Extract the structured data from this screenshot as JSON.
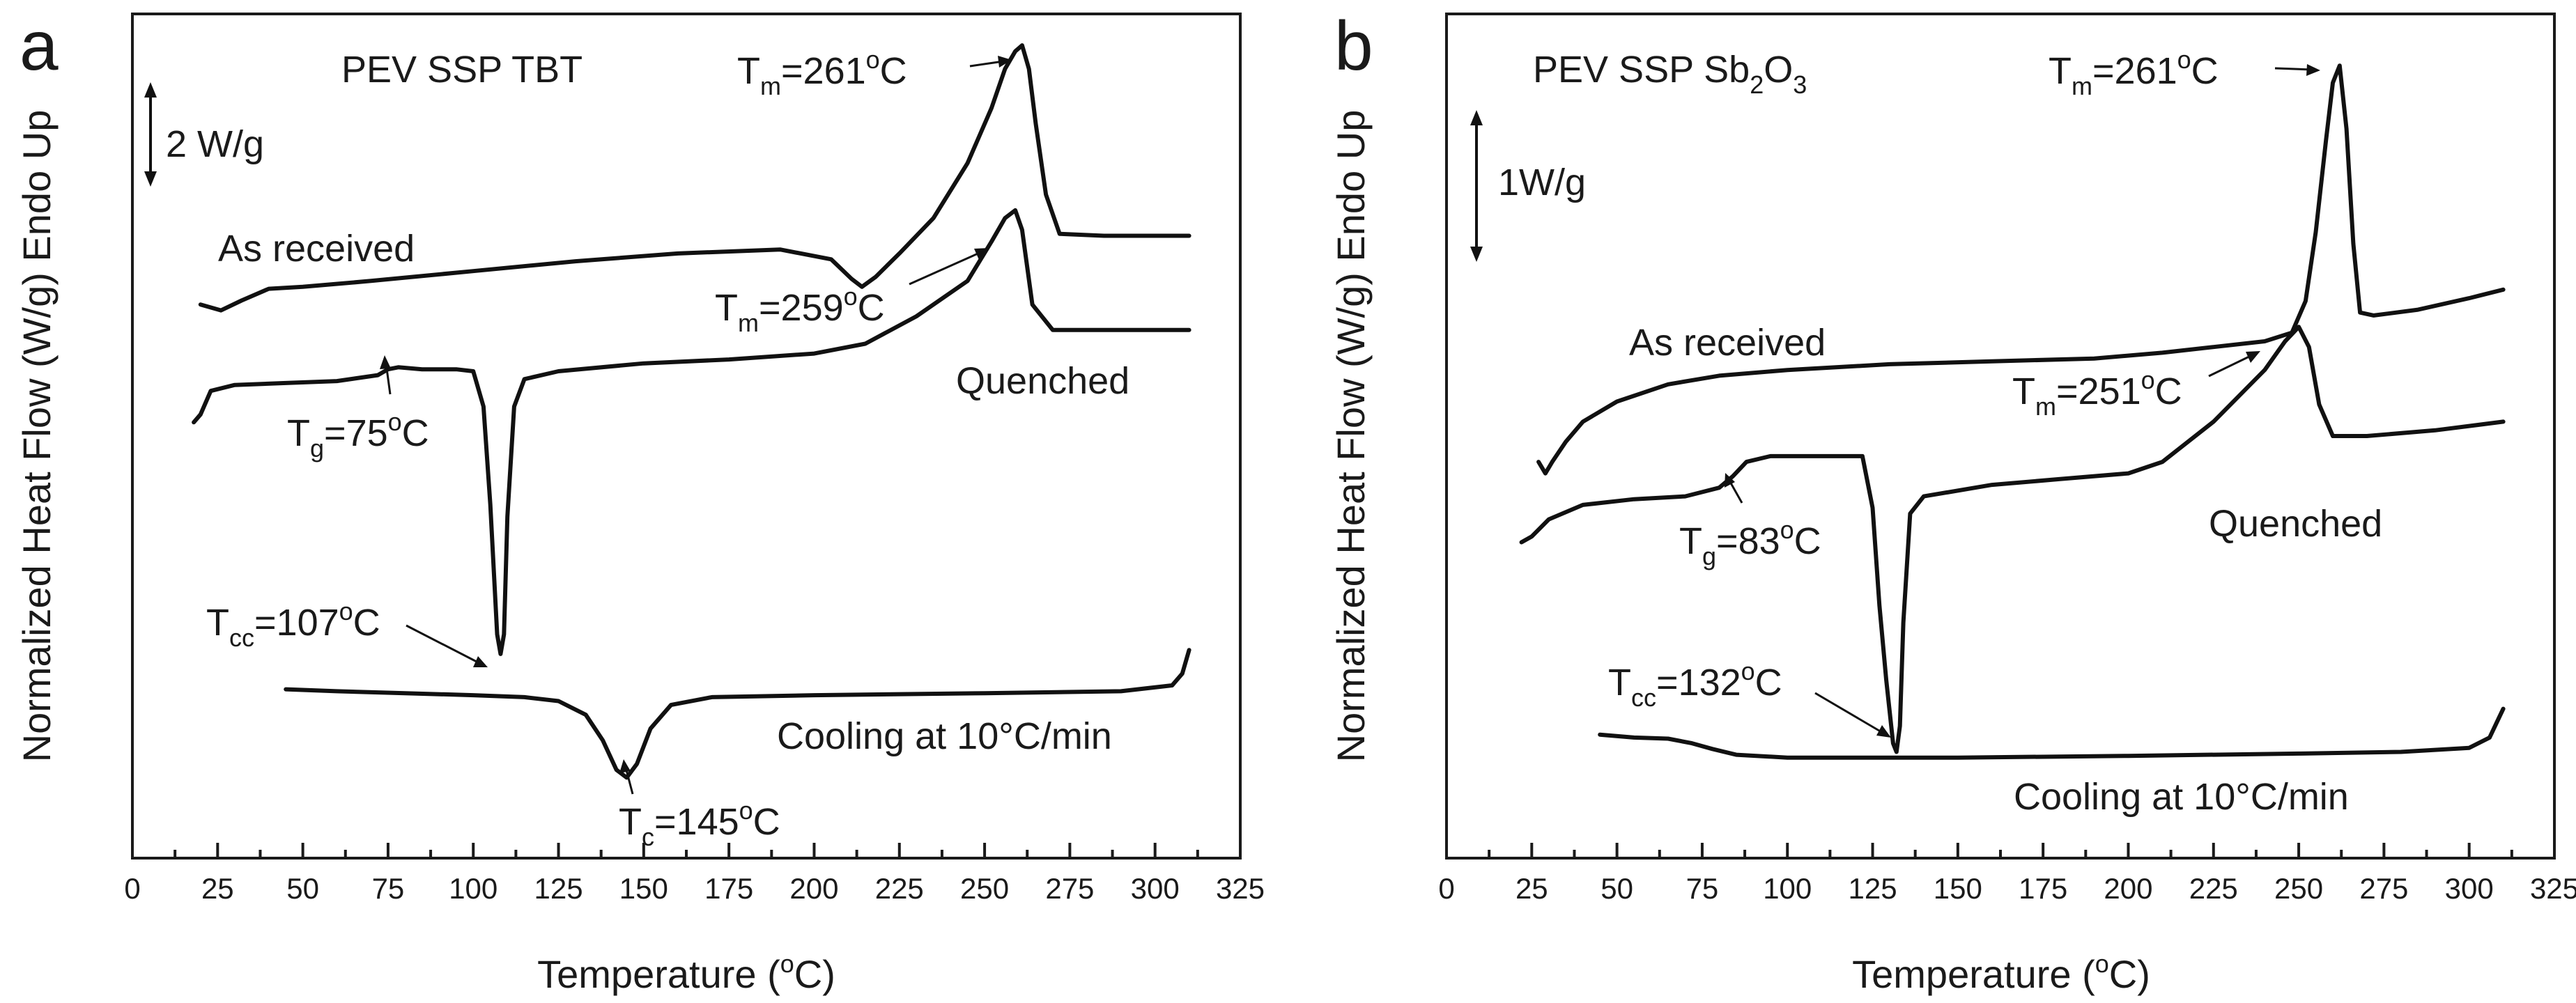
{
  "chart_data": [
    {
      "panel": "a",
      "type": "line",
      "title": "PEV SSP TBT",
      "xlabel": "Temperature (°C)",
      "ylabel": "Normalized Heat Flow (W/g) Endo Up",
      "xlim": [
        0,
        325
      ],
      "xticks": [
        0,
        25,
        50,
        75,
        100,
        125,
        150,
        175,
        200,
        225,
        250,
        275,
        300,
        325
      ],
      "scale_bar": "2 W/g",
      "series": [
        {
          "name": "As received",
          "x": [
            20,
            26,
            32,
            40,
            50,
            70,
            100,
            130,
            160,
            190,
            205,
            211,
            214,
            218,
            225,
            235,
            245,
            252,
            256,
            259,
            261,
            263,
            265,
            268,
            272,
            285,
            310
          ],
          "y": [
            7.6,
            7.45,
            7.7,
            8.0,
            8.05,
            8.2,
            8.45,
            8.7,
            8.9,
            9.0,
            8.75,
            8.25,
            8.05,
            8.3,
            8.9,
            9.8,
            11.2,
            12.6,
            13.6,
            14.05,
            14.2,
            13.6,
            12.2,
            10.4,
            9.4,
            9.35,
            9.35
          ]
        },
        {
          "name": "Quenched",
          "x": [
            18,
            20,
            23,
            30,
            45,
            60,
            72,
            75,
            78,
            85,
            95,
            100,
            103,
            105,
            107,
            108,
            109,
            110,
            112,
            115,
            125,
            150,
            175,
            200,
            215,
            230,
            245,
            252,
            256,
            259,
            261,
            264,
            270,
            285,
            310
          ],
          "y": [
            4.6,
            4.8,
            5.4,
            5.55,
            5.6,
            5.65,
            5.8,
            5.95,
            6.0,
            5.95,
            5.95,
            5.9,
            5.0,
            2.5,
            -0.8,
            -1.3,
            -0.8,
            2.2,
            5.0,
            5.7,
            5.9,
            6.1,
            6.2,
            6.35,
            6.6,
            7.3,
            8.2,
            9.2,
            9.8,
            10.0,
            9.5,
            7.6,
            6.95,
            6.95,
            6.95
          ]
        },
        {
          "name": "Cooling at 10°C/min",
          "x": [
            45,
            60,
            80,
            100,
            115,
            125,
            133,
            138,
            142,
            145,
            148,
            152,
            158,
            170,
            200,
            250,
            290,
            305,
            308,
            310
          ],
          "y": [
            -2.2,
            -2.25,
            -2.3,
            -2.35,
            -2.4,
            -2.5,
            -2.85,
            -3.5,
            -4.25,
            -4.45,
            -4.1,
            -3.2,
            -2.6,
            -2.4,
            -2.35,
            -2.3,
            -2.25,
            -2.1,
            -1.8,
            -1.2
          ]
        }
      ],
      "annotations": {
        "as_received": "As received",
        "quenched": "Quenched",
        "cooling": "Cooling at 10°C/min",
        "tm1": {
          "base": "T",
          "sub": "m",
          "text": "=261",
          "unit": "C"
        },
        "tm2": {
          "base": "T",
          "sub": "m",
          "text": "=259",
          "unit": "C"
        },
        "tg": {
          "base": "T",
          "sub": "g",
          "text": "=75",
          "unit": "C"
        },
        "tcc": {
          "base": "T",
          "sub": "cc",
          "text": "=107",
          "unit": "C"
        },
        "tc": {
          "base": "T",
          "sub": "c",
          "text": "=145",
          "unit": "C"
        },
        "degree": "o"
      }
    },
    {
      "panel": "b",
      "type": "line",
      "title": "PEV SSP Sb2O3",
      "title_parts": {
        "a": "PEV SSP Sb",
        "sub1": "2",
        "b": "O",
        "sub2": "3"
      },
      "xlabel": "Temperature (°C)",
      "ylabel": "Normalized Heat Flow (W/g) Endo Up",
      "xlim": [
        0,
        325
      ],
      "xticks": [
        0,
        25,
        50,
        75,
        100,
        125,
        150,
        175,
        200,
        225,
        250,
        275,
        300,
        325
      ],
      "scale_bar": "1W/g",
      "series": [
        {
          "name": "As received",
          "x": [
            27,
            29,
            31,
            35,
            40,
            50,
            65,
            80,
            100,
            130,
            160,
            190,
            210,
            225,
            240,
            248,
            252,
            255,
            258,
            260,
            262,
            264,
            266,
            268,
            272,
            285,
            300,
            310
          ],
          "y": [
            2.2,
            2.0,
            2.2,
            2.55,
            2.9,
            3.25,
            3.55,
            3.7,
            3.8,
            3.9,
            3.95,
            4.0,
            4.1,
            4.2,
            4.3,
            4.45,
            5.0,
            6.2,
            7.8,
            8.8,
            9.1,
            8.0,
            6.0,
            4.8,
            4.75,
            4.85,
            5.05,
            5.2
          ]
        },
        {
          "name": "Quenched",
          "x": [
            22,
            25,
            30,
            40,
            55,
            70,
            80,
            84,
            88,
            95,
            110,
            122,
            125,
            127,
            129,
            131,
            132,
            133,
            134,
            136,
            140,
            160,
            180,
            200,
            210,
            225,
            240,
            246,
            250,
            253,
            256,
            260,
            270,
            290,
            310
          ],
          "y": [
            0.8,
            0.9,
            1.2,
            1.45,
            1.55,
            1.6,
            1.75,
            1.95,
            2.2,
            2.3,
            2.3,
            2.3,
            1.4,
            -0.3,
            -1.6,
            -2.7,
            -2.85,
            -2.4,
            -0.6,
            1.3,
            1.6,
            1.8,
            1.9,
            2.0,
            2.2,
            2.9,
            3.8,
            4.3,
            4.55,
            4.2,
            3.2,
            2.65,
            2.65,
            2.75,
            2.9
          ]
        },
        {
          "name": "Cooling at 10°C/min",
          "x": [
            45,
            55,
            65,
            72,
            78,
            85,
            100,
            150,
            200,
            250,
            280,
            300,
            306,
            308,
            310
          ],
          "y": [
            -2.55,
            -2.6,
            -2.62,
            -2.7,
            -2.8,
            -2.9,
            -2.95,
            -2.95,
            -2.92,
            -2.88,
            -2.85,
            -2.78,
            -2.6,
            -2.35,
            -2.1
          ]
        }
      ],
      "annotations": {
        "as_received": "As received",
        "quenched": "Quenched",
        "cooling": "Cooling at 10°C/min",
        "tm1": {
          "base": "T",
          "sub": "m",
          "text": "=261",
          "unit": "C"
        },
        "tm2": {
          "base": "T",
          "sub": "m",
          "text": "=251",
          "unit": "C"
        },
        "tg": {
          "base": "T",
          "sub": "g",
          "text": "=83",
          "unit": "C"
        },
        "tcc": {
          "base": "T",
          "sub": "cc",
          "text": "=132",
          "unit": "C"
        },
        "degree": "o"
      }
    }
  ],
  "xlabel_parts": {
    "a": "Temperature (",
    "sup": "o",
    "b": "C)"
  }
}
